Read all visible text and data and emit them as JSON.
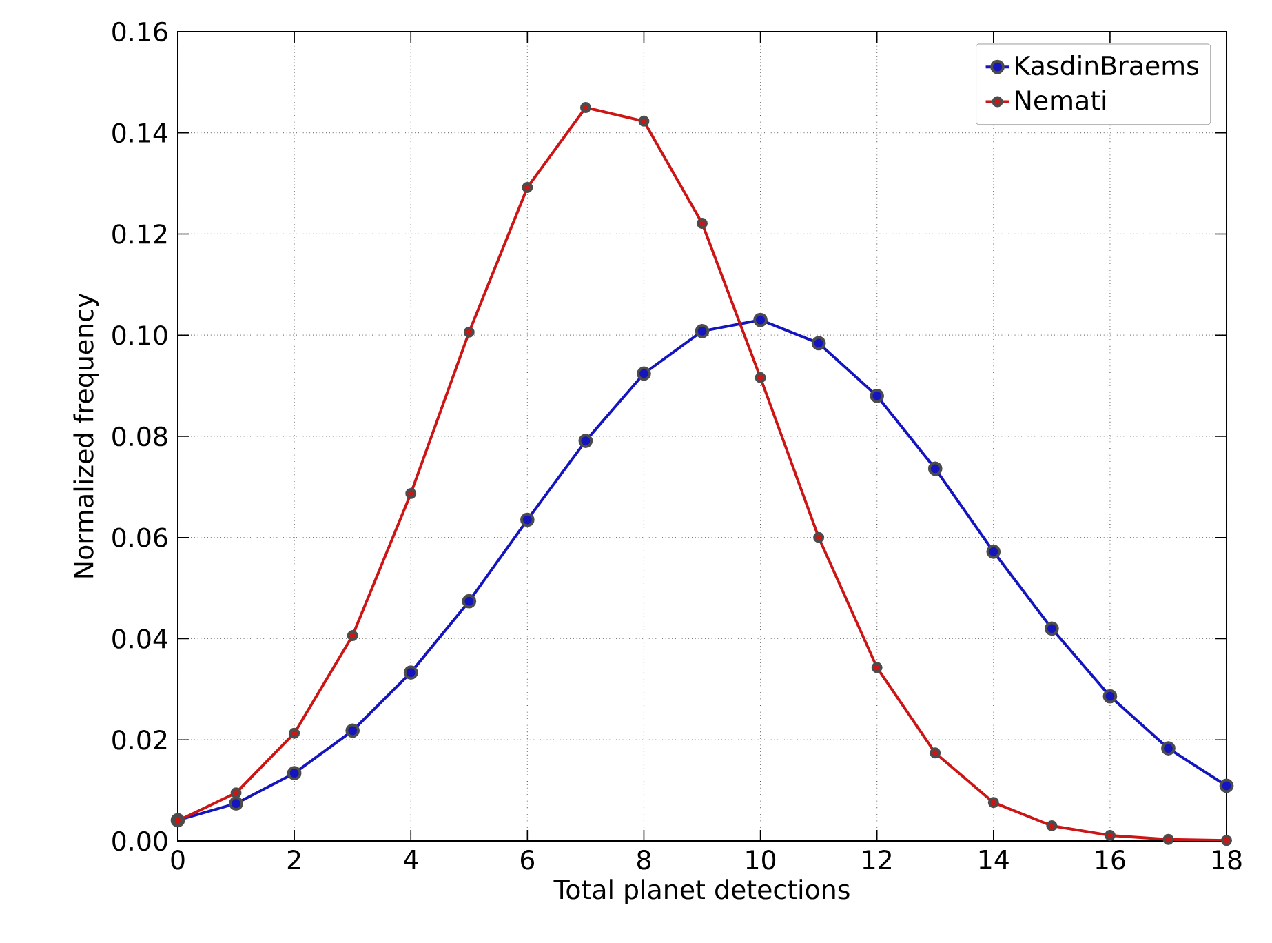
{
  "chart_data": {
    "type": "line",
    "xlabel": "Total planet detections",
    "ylabel": "Normalized frequency",
    "x": [
      0,
      1,
      2,
      3,
      4,
      5,
      6,
      7,
      8,
      9,
      10,
      11,
      12,
      13,
      14,
      15,
      16,
      17,
      18
    ],
    "series": [
      {
        "name": "KasdinBraems",
        "color": "#1515c0",
        "values": [
          0.0041,
          0.0074,
          0.0134,
          0.0218,
          0.0333,
          0.0474,
          0.0635,
          0.0791,
          0.0924,
          0.1008,
          0.103,
          0.0984,
          0.088,
          0.0736,
          0.0572,
          0.042,
          0.0286,
          0.0183,
          0.0109
        ]
      },
      {
        "name": "Nemati",
        "color": "#cc1515",
        "values": [
          0.004,
          0.0095,
          0.0213,
          0.0406,
          0.0687,
          0.1006,
          0.1292,
          0.145,
          0.1423,
          0.1221,
          0.0916,
          0.06,
          0.0343,
          0.0174,
          0.0076,
          0.003,
          0.0011,
          0.0003,
          0.0001
        ]
      }
    ],
    "xlim": [
      0,
      18
    ],
    "ylim": [
      0,
      0.16
    ],
    "xticks": [
      0,
      2,
      4,
      6,
      8,
      10,
      12,
      14,
      16,
      18
    ],
    "yticks": [
      {
        "value": 0,
        "label": "0.00"
      },
      {
        "value": 0.02,
        "label": "0.02"
      },
      {
        "value": 0.04,
        "label": "0.04"
      },
      {
        "value": 0.06,
        "label": "0.06"
      },
      {
        "value": 0.08,
        "label": "0.08"
      },
      {
        "value": 0.1,
        "label": "0.10"
      },
      {
        "value": 0.12,
        "label": "0.12"
      },
      {
        "value": 0.14,
        "label": "0.14"
      },
      {
        "value": 0.16,
        "label": "0.16"
      }
    ],
    "grid": true,
    "legend": "top right",
    "marker": "circle",
    "line_style": "solid"
  }
}
